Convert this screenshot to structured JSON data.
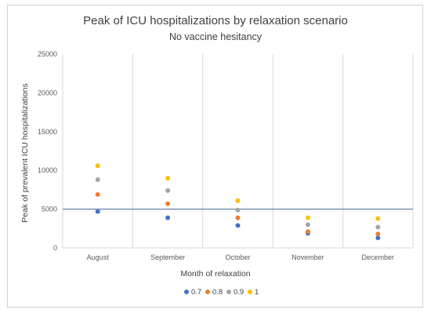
{
  "chart_data": {
    "type": "scatter",
    "title": "Peak of ICU hospitalizations by relaxation scenario",
    "subtitle": "No vaccine hesitancy",
    "xlabel": "Month of relaxation",
    "ylabel": "Peak of prevalent ICU hospitalizations",
    "categories": [
      "August",
      "September",
      "October",
      "November",
      "December"
    ],
    "ylim": [
      0,
      25000
    ],
    "yticks": [
      0,
      5000,
      10000,
      15000,
      20000,
      25000
    ],
    "grid": "vertical category lines",
    "legend_position": "bottom",
    "reference_line": {
      "y": 5000,
      "color": "#7f99b5"
    },
    "series": [
      {
        "name": "0.7",
        "color": "#4472c4",
        "values": [
          4700,
          3900,
          2900,
          1900,
          1300
        ]
      },
      {
        "name": "0.8",
        "color": "#ed7d31",
        "values": [
          6900,
          5700,
          3900,
          2100,
          1800
        ]
      },
      {
        "name": "0.9",
        "color": "#a5a5a5",
        "values": [
          8800,
          7400,
          4900,
          3000,
          2700
        ]
      },
      {
        "name": "1",
        "color": "#ffc000",
        "values": [
          10600,
          9000,
          6100,
          3900,
          3800
        ]
      }
    ]
  }
}
